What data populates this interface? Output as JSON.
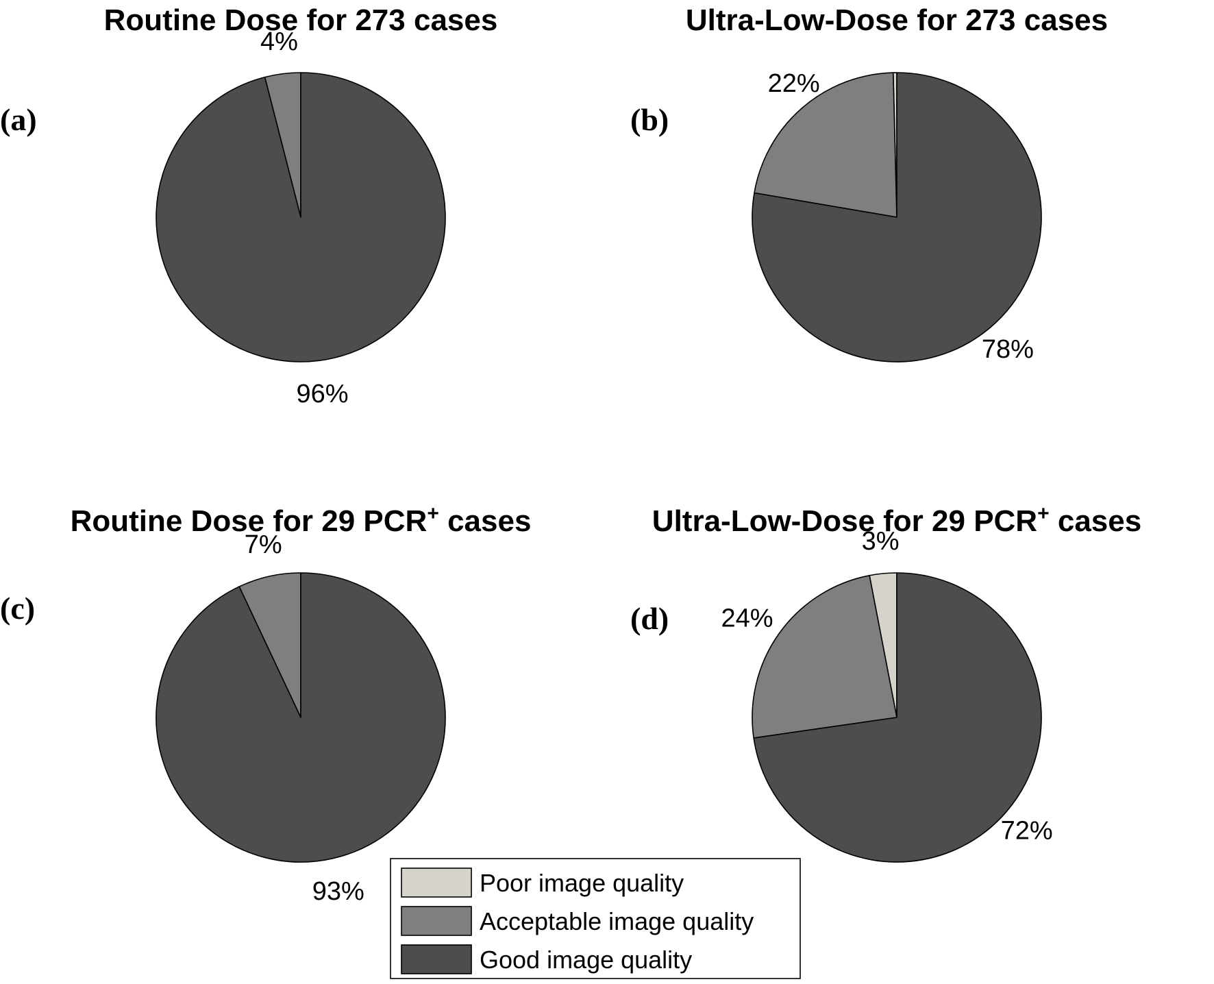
{
  "legend": {
    "items": [
      {
        "label": "Poor image quality",
        "color": "#d6d3cc"
      },
      {
        "label": "Acceptable image quality",
        "color": "#7f7f7f"
      },
      {
        "label": "Good image quality",
        "color": "#4d4d4d"
      }
    ]
  },
  "chart_data": [
    {
      "type": "pie",
      "panel_label": "(a)",
      "title": "Routine Dose for 273 cases",
      "title_superscript": "",
      "title_suffix": "",
      "slices": [
        {
          "category": "Poor image quality",
          "value": 0,
          "label": ""
        },
        {
          "category": "Acceptable image quality",
          "value": 4,
          "label": "4%"
        },
        {
          "category": "Good image quality",
          "value": 96,
          "label": "96%"
        }
      ]
    },
    {
      "type": "pie",
      "panel_label": "(b)",
      "title": "Ultra-Low-Dose for 273 cases",
      "title_superscript": "",
      "title_suffix": "",
      "slices": [
        {
          "category": "Poor image quality",
          "value": 0.4,
          "label": ""
        },
        {
          "category": "Acceptable image quality",
          "value": 22,
          "label": "22%"
        },
        {
          "category": "Good image quality",
          "value": 78,
          "label": "78%"
        }
      ]
    },
    {
      "type": "pie",
      "panel_label": "(c)",
      "title": "Routine Dose for 29 PCR",
      "title_superscript": "+",
      "title_suffix": " cases",
      "slices": [
        {
          "category": "Poor image quality",
          "value": 0,
          "label": ""
        },
        {
          "category": "Acceptable image quality",
          "value": 7,
          "label": "7%"
        },
        {
          "category": "Good image quality",
          "value": 93,
          "label": "93%"
        }
      ]
    },
    {
      "type": "pie",
      "panel_label": "(d)",
      "title": "Ultra-Low-Dose for 29 PCR",
      "title_superscript": "+",
      "title_suffix": " cases",
      "slices": [
        {
          "category": "Poor image quality",
          "value": 3,
          "label": "3%"
        },
        {
          "category": "Acceptable image quality",
          "value": 24,
          "label": "24%"
        },
        {
          "category": "Good image quality",
          "value": 72,
          "label": "72%"
        }
      ]
    }
  ]
}
